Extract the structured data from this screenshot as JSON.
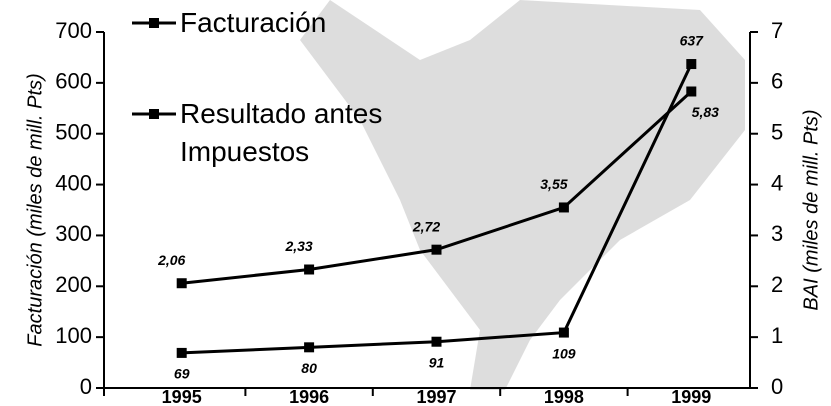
{
  "chart_data": {
    "type": "line",
    "categories": [
      "1995",
      "1996",
      "1997",
      "1998",
      "1999"
    ],
    "series": [
      {
        "name": "Facturación",
        "color": "#000000",
        "values": [
          69,
          80,
          91,
          109,
          637
        ]
      },
      {
        "name": "Resultado antes Impuestos",
        "color": "#000000",
        "axis": "y2",
        "values": [
          2.06,
          2.33,
          2.72,
          3.55,
          5.83
        ],
        "value_labels": [
          "2,06",
          "2,33",
          "2,72",
          "3,55",
          "5,83"
        ]
      }
    ],
    "y_label": "Facturación (miles de mill. Pts)",
    "y2_label": "BAI (miles de mill. Pts)",
    "ylim": [
      0,
      700
    ],
    "yticks": [
      0,
      100,
      200,
      300,
      400,
      500,
      600,
      700
    ],
    "y2lim": [
      0,
      7
    ],
    "y2ticks": [
      0,
      1,
      2,
      3,
      4,
      5,
      6,
      7
    ],
    "legend": "top-left"
  }
}
